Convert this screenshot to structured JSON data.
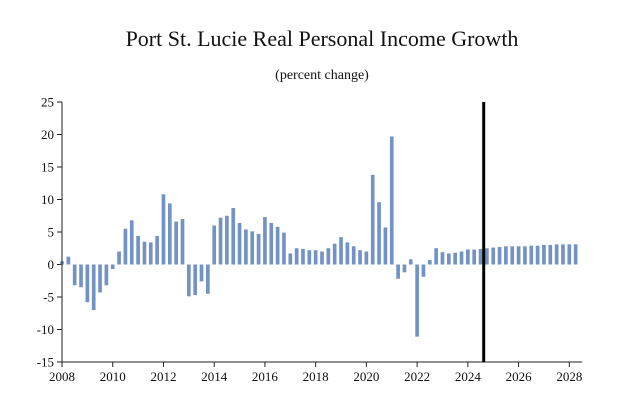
{
  "chart_data": {
    "type": "bar",
    "title": "Port St. Lucie Real Personal Income Growth",
    "subtitle": "(percent change)",
    "xlabel": "",
    "ylabel": "",
    "ylim": [
      -15,
      25
    ],
    "yticks": [
      25,
      20,
      15,
      10,
      5,
      0,
      -5,
      -10,
      -15
    ],
    "xtick_labels": [
      "2008",
      "2010",
      "2012",
      "2014",
      "2016",
      "2018",
      "2020",
      "2022",
      "2024",
      "2026",
      "2028"
    ],
    "x_start": 2008.0,
    "x_end": 2028.5,
    "forecast_start": 2024.75,
    "bar_color": "#7393c5",
    "marker_color": "#000000",
    "grid": false,
    "legend": "none",
    "x": [
      2008.0,
      2008.25,
      2008.5,
      2008.75,
      2009.0,
      2009.25,
      2009.5,
      2009.75,
      2010.0,
      2010.25,
      2010.5,
      2010.75,
      2011.0,
      2011.25,
      2011.5,
      2011.75,
      2012.0,
      2012.25,
      2012.5,
      2012.75,
      2013.0,
      2013.25,
      2013.5,
      2013.75,
      2014.0,
      2014.25,
      2014.5,
      2014.75,
      2015.0,
      2015.25,
      2015.5,
      2015.75,
      2016.0,
      2016.25,
      2016.5,
      2016.75,
      2017.0,
      2017.25,
      2017.5,
      2017.75,
      2018.0,
      2018.25,
      2018.5,
      2018.75,
      2019.0,
      2019.25,
      2019.5,
      2019.75,
      2020.0,
      2020.25,
      2020.5,
      2020.75,
      2021.0,
      2021.25,
      2021.5,
      2021.75,
      2022.0,
      2022.25,
      2022.5,
      2022.75,
      2023.0,
      2023.25,
      2023.5,
      2023.75,
      2024.0,
      2024.25,
      2024.5,
      2024.75,
      2025.0,
      2025.25,
      2025.5,
      2025.75,
      2026.0,
      2026.25,
      2026.5,
      2026.75,
      2027.0,
      2027.25,
      2027.5,
      2027.75,
      2028.0,
      2028.25
    ],
    "values": [
      0.5,
      1.2,
      -3.2,
      -3.5,
      -5.8,
      -7.0,
      -4.3,
      -3.2,
      -0.7,
      2.0,
      5.5,
      6.8,
      4.4,
      3.5,
      3.4,
      4.4,
      10.8,
      9.4,
      6.6,
      7.0,
      -4.9,
      -4.7,
      -2.6,
      -4.5,
      6.0,
      7.2,
      7.5,
      8.7,
      6.4,
      5.4,
      5.1,
      4.7,
      7.3,
      6.4,
      5.8,
      4.9,
      1.7,
      2.5,
      2.4,
      2.2,
      2.2,
      2.0,
      2.5,
      3.2,
      4.2,
      3.4,
      2.8,
      2.2,
      2.0,
      13.8,
      9.6,
      5.7,
      19.7,
      -2.2,
      -1.2,
      0.8,
      -11.1,
      -1.9,
      0.7,
      2.5,
      1.9,
      1.7,
      1.8,
      2.0,
      2.3,
      2.3,
      2.4,
      2.5,
      2.6,
      2.7,
      2.8,
      2.8,
      2.8,
      2.8,
      2.9,
      2.9,
      3.0,
      3.0,
      3.1,
      3.1,
      3.1,
      3.1
    ]
  }
}
